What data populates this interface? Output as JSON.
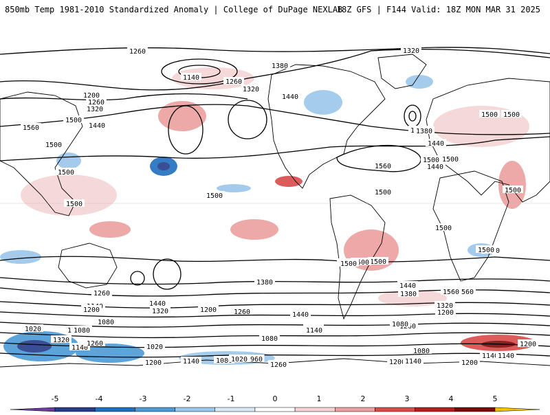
{
  "header": {
    "title_left": "850mb Temp 1981-2010 Standardized Anomaly | College of DuPage NEXLAB",
    "title_right": "18Z GFS | F144 Valid: 18Z MON MAR 31 2025"
  },
  "colorbar": {
    "ticks": [
      "-5",
      "-4",
      "-3",
      "-2",
      "-1",
      "0",
      "1",
      "2",
      "3",
      "4",
      "5"
    ],
    "colors": [
      "#6a3d9a",
      "#253b8a",
      "#1f6fbf",
      "#4b9ad6",
      "#9cc6ea",
      "#d8e8f6",
      "#ffffff",
      "#f4d4d4",
      "#ec9f9f",
      "#d94a4a",
      "#b41e1e",
      "#7a0b0b",
      "#f2c300"
    ]
  },
  "contour_labels": [
    "1260",
    "1320",
    "1380",
    "1140",
    "1260",
    "1320",
    "1440",
    "1200",
    "1260",
    "1320",
    "1500",
    "1440",
    "1560",
    "1500",
    "1500",
    "1500",
    "1560",
    "1500",
    "1500",
    "1500",
    "1500",
    "1500",
    "1500",
    "1560",
    "1380",
    "1440",
    "1500",
    "1500",
    "1500",
    "1500",
    "1380",
    "1260",
    "1140",
    "1200",
    "1440",
    "1320",
    "1200",
    "1260",
    "1380",
    "1320",
    "1440",
    "1140",
    "1080",
    "1080",
    "1140",
    "1020",
    "1080",
    "1320",
    "1260",
    "1020",
    "1200",
    "1140",
    "1080",
    "1020",
    "960",
    "1260",
    "1440",
    "1380",
    "1560",
    "1260",
    "1320",
    "1200",
    "1080",
    "1140",
    "1080",
    "1200",
    "1140",
    "1200",
    "1140",
    "1080",
    "1200",
    "1140",
    "1380",
    "1440",
    "1500",
    "1500",
    "1500",
    "1500"
  ]
}
